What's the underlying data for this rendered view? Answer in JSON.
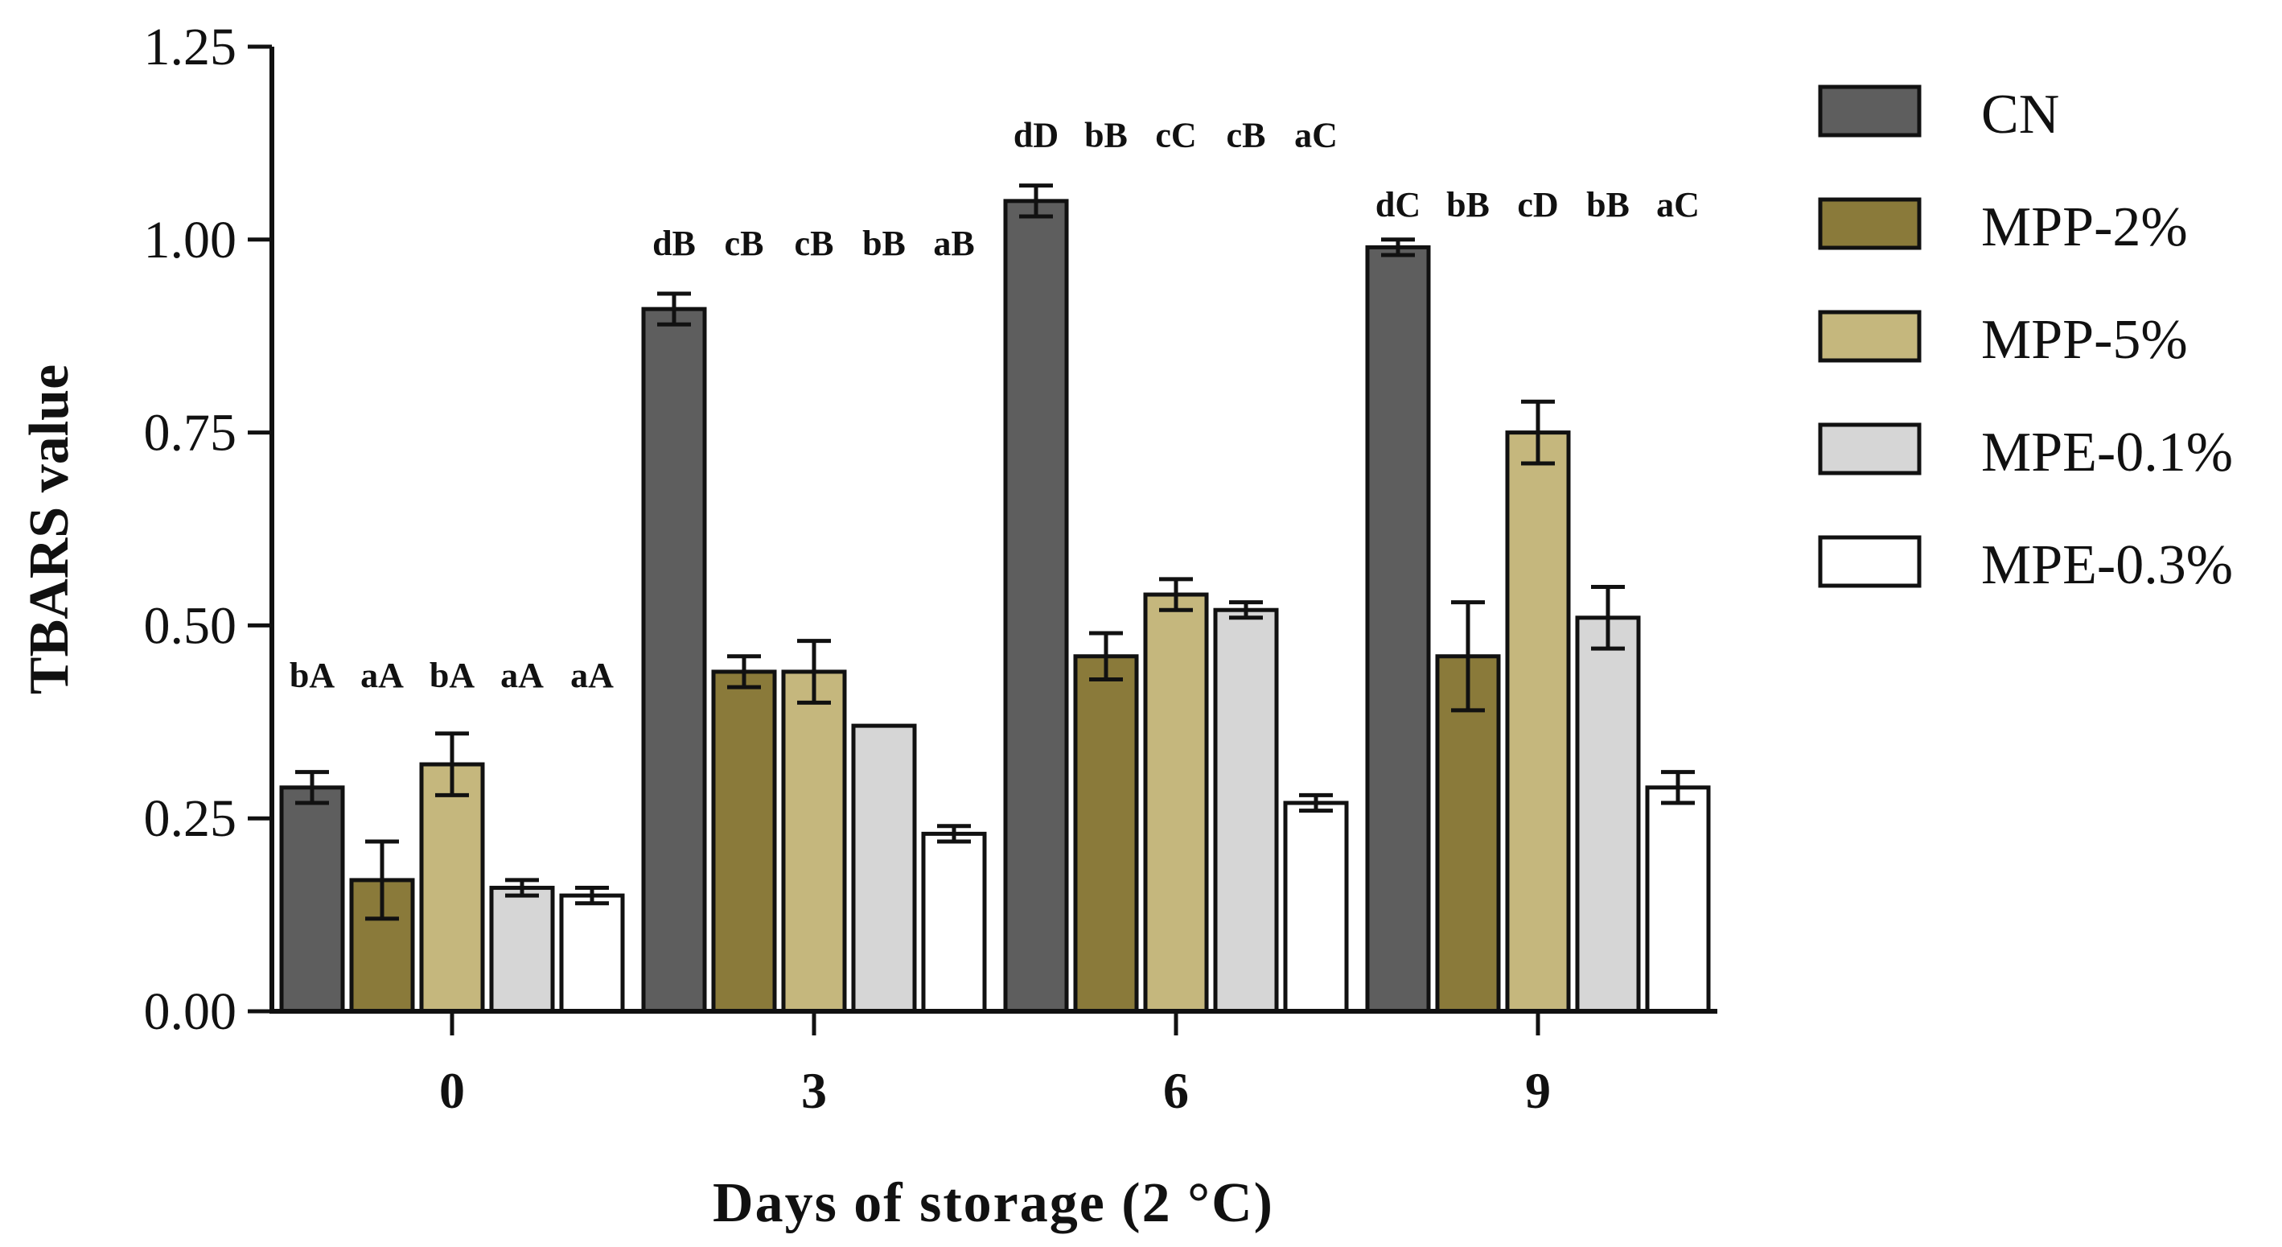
{
  "chart_data": {
    "type": "bar",
    "title": "",
    "xlabel": "Days of storage (2 °C)",
    "ylabel": "TBARS value",
    "ylim": [
      0,
      1.25
    ],
    "yticks": [
      "0.00",
      "0.25",
      "0.50",
      "0.75",
      "1.00",
      "1.25"
    ],
    "categories": [
      "0",
      "3",
      "6",
      "9"
    ],
    "series": [
      {
        "name": "CN",
        "color": "#5e5e5e",
        "values": [
          0.29,
          0.91,
          1.05,
          0.99
        ],
        "errors": [
          0.02,
          0.02,
          0.02,
          0.01
        ]
      },
      {
        "name": "MPP-2%",
        "color": "#8a7a3a",
        "values": [
          0.17,
          0.44,
          0.46,
          0.46
        ],
        "errors": [
          0.05,
          0.02,
          0.03,
          0.07
        ]
      },
      {
        "name": "MPP-5%",
        "color": "#c5b77d",
        "values": [
          0.32,
          0.44,
          0.54,
          0.75
        ],
        "errors": [
          0.04,
          0.04,
          0.02,
          0.04
        ]
      },
      {
        "name": "MPE-0.1%",
        "color": "#d6d6d6",
        "values": [
          0.16,
          0.37,
          0.52,
          0.51
        ],
        "errors": [
          0.01,
          0.0,
          0.01,
          0.04
        ]
      },
      {
        "name": "MPE-0.3%",
        "color": "#ffffff",
        "values": [
          0.15,
          0.23,
          0.27,
          0.29
        ],
        "errors": [
          0.01,
          0.01,
          0.01,
          0.02
        ]
      }
    ],
    "annotations": [
      {
        "category": "0",
        "value": 0.42,
        "labels": [
          "bA",
          "aA",
          "bA",
          "aA",
          "aA"
        ]
      },
      {
        "category": "3",
        "value": 0.98,
        "labels": [
          "dB",
          "cB",
          "cB",
          "bB",
          "aB"
        ]
      },
      {
        "category": "6",
        "value": 1.12,
        "labels": [
          "dD",
          "bB",
          "cC",
          "cB",
          "aC"
        ]
      },
      {
        "category": "9",
        "value": 1.03,
        "labels": [
          "dC",
          "bB",
          "cD",
          "bB",
          "aC"
        ]
      }
    ],
    "legend_position": "right",
    "grid": false
  }
}
